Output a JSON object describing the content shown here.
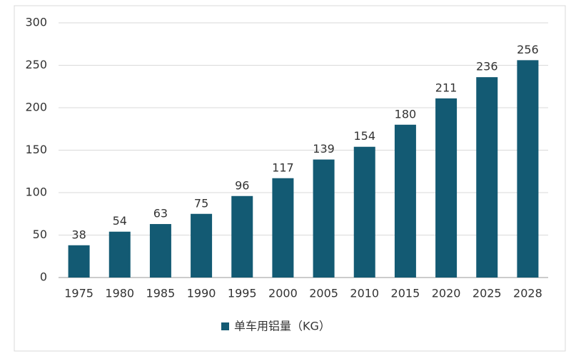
{
  "chart_data": {
    "type": "bar",
    "categories": [
      "1975",
      "1980",
      "1985",
      "1990",
      "1995",
      "2000",
      "2005",
      "2010",
      "2015",
      "2020",
      "2025",
      "2028"
    ],
    "series": [
      {
        "name": "单车用铝量（KG）",
        "color": "#135a73",
        "values": [
          38,
          54,
          63,
          75,
          96,
          117,
          139,
          154,
          180,
          211,
          236,
          256
        ]
      }
    ],
    "ylim": [
      0,
      300
    ],
    "yticks": [
      0,
      50,
      100,
      150,
      200,
      250,
      300
    ],
    "grid": true
  }
}
